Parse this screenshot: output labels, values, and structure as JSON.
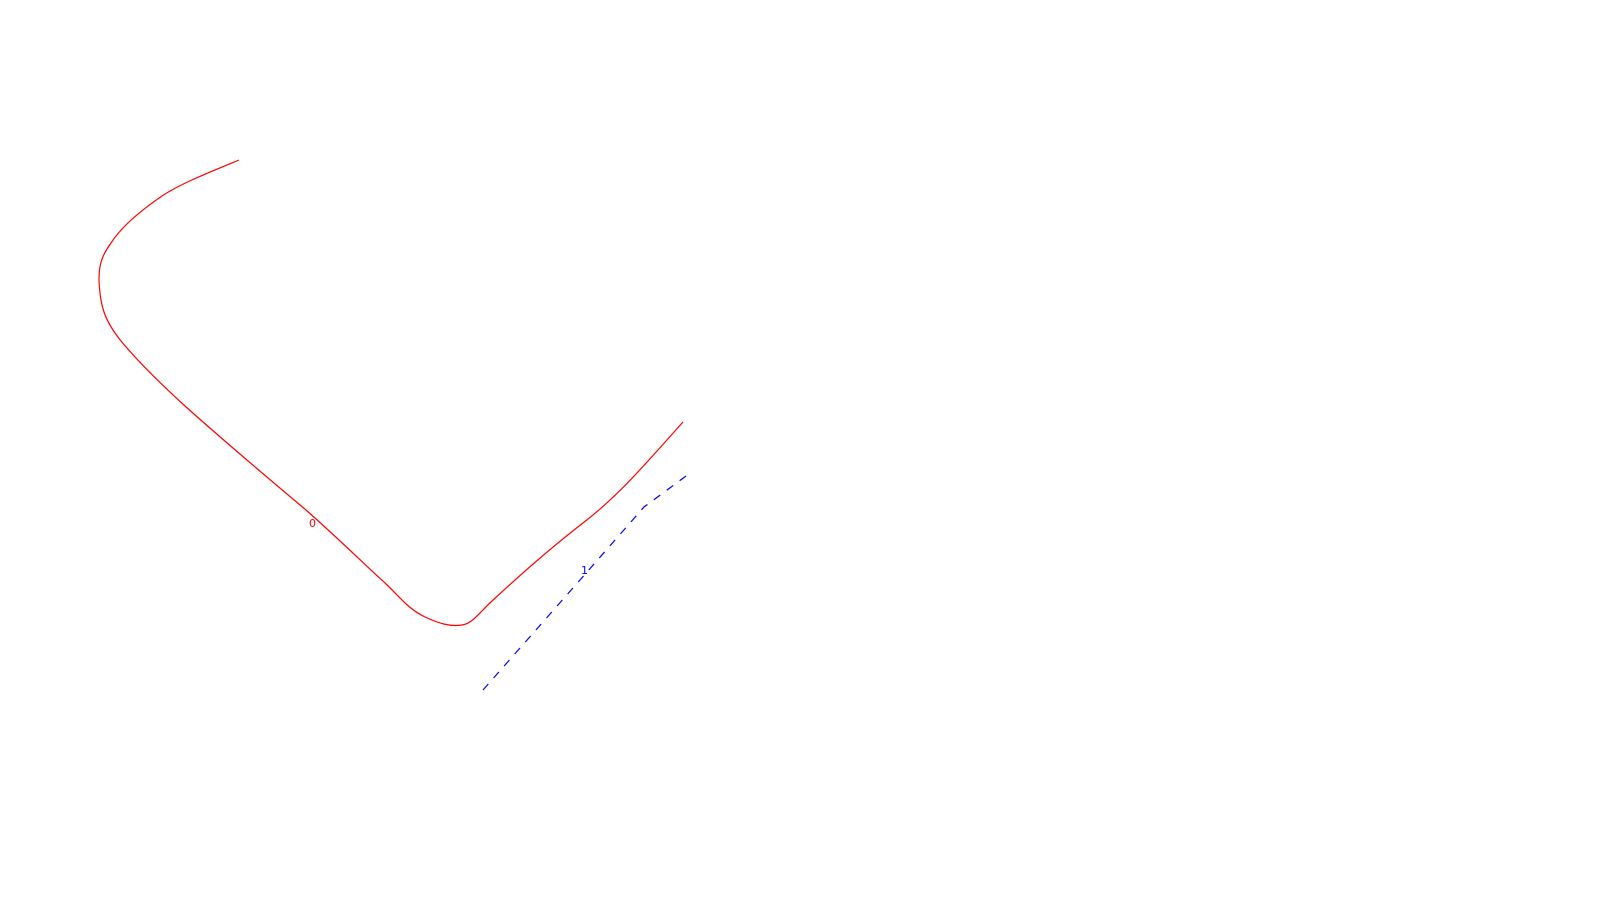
{
  "curves": [
    {
      "id": "curve-0",
      "label": "0",
      "color": "#ff0000",
      "style": "solid"
    },
    {
      "id": "curve-1",
      "label": "1",
      "color": "#0000ff",
      "style": "dashed"
    }
  ]
}
